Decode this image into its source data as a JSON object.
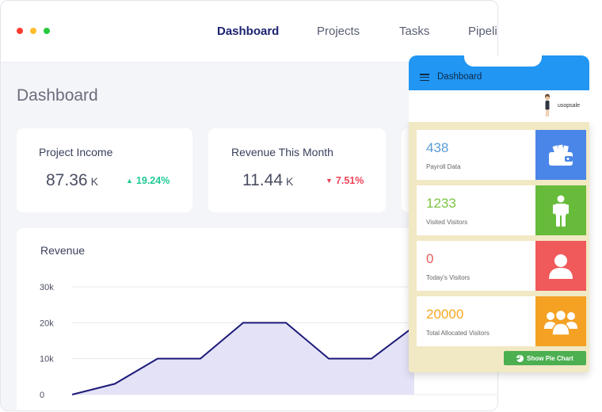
{
  "topbar": {
    "nav": [
      {
        "label": "Dashboard",
        "active": true
      },
      {
        "label": "Projects",
        "active": false
      },
      {
        "label": "Tasks",
        "active": false
      },
      {
        "label": "Pipeli",
        "active": false
      }
    ]
  },
  "page": {
    "title": "Dashboard"
  },
  "cards": [
    {
      "title": "Project Income",
      "value": "87.36",
      "unit": "K",
      "change": "19.24%",
      "direction": "up"
    },
    {
      "title": "Revenue This Month",
      "value": "11.44",
      "unit": "K",
      "change": "7.51%",
      "direction": "down"
    }
  ],
  "chart_data": {
    "type": "area",
    "title": "Revenue",
    "xlabel": "",
    "ylabel": "",
    "y_ticks": [
      "30k",
      "20k",
      "10k",
      "0"
    ],
    "ylim": [
      0,
      30000
    ],
    "grid": true,
    "line_color": "#1c1a78",
    "fill_color": "#e4e2f6",
    "values": [
      0,
      3000,
      10000,
      10000,
      20000,
      20000,
      10000,
      10000,
      19000
    ]
  },
  "phone": {
    "title": "Dashboard",
    "username": "usopsale",
    "stats": [
      {
        "value": "438",
        "label": "Payroll Data",
        "color": "#5a9bd5",
        "icon_color": "#4a86e8",
        "icon": "wallet-icon"
      },
      {
        "value": "1233",
        "label": "Visited Visitors",
        "color": "#7cc342",
        "icon_color": "#66bb3a",
        "icon": "person-icon"
      },
      {
        "value": "0",
        "label": "Today's Visitors",
        "color": "#ef5b5b",
        "icon_color": "#f05a5a",
        "icon": "user-icon"
      },
      {
        "value": "20000",
        "label": "Total Allocated Visitors",
        "color": "#f5a623",
        "icon_color": "#f4a124",
        "icon": "group-icon"
      }
    ],
    "pie_button": "Show Pie Chart"
  }
}
